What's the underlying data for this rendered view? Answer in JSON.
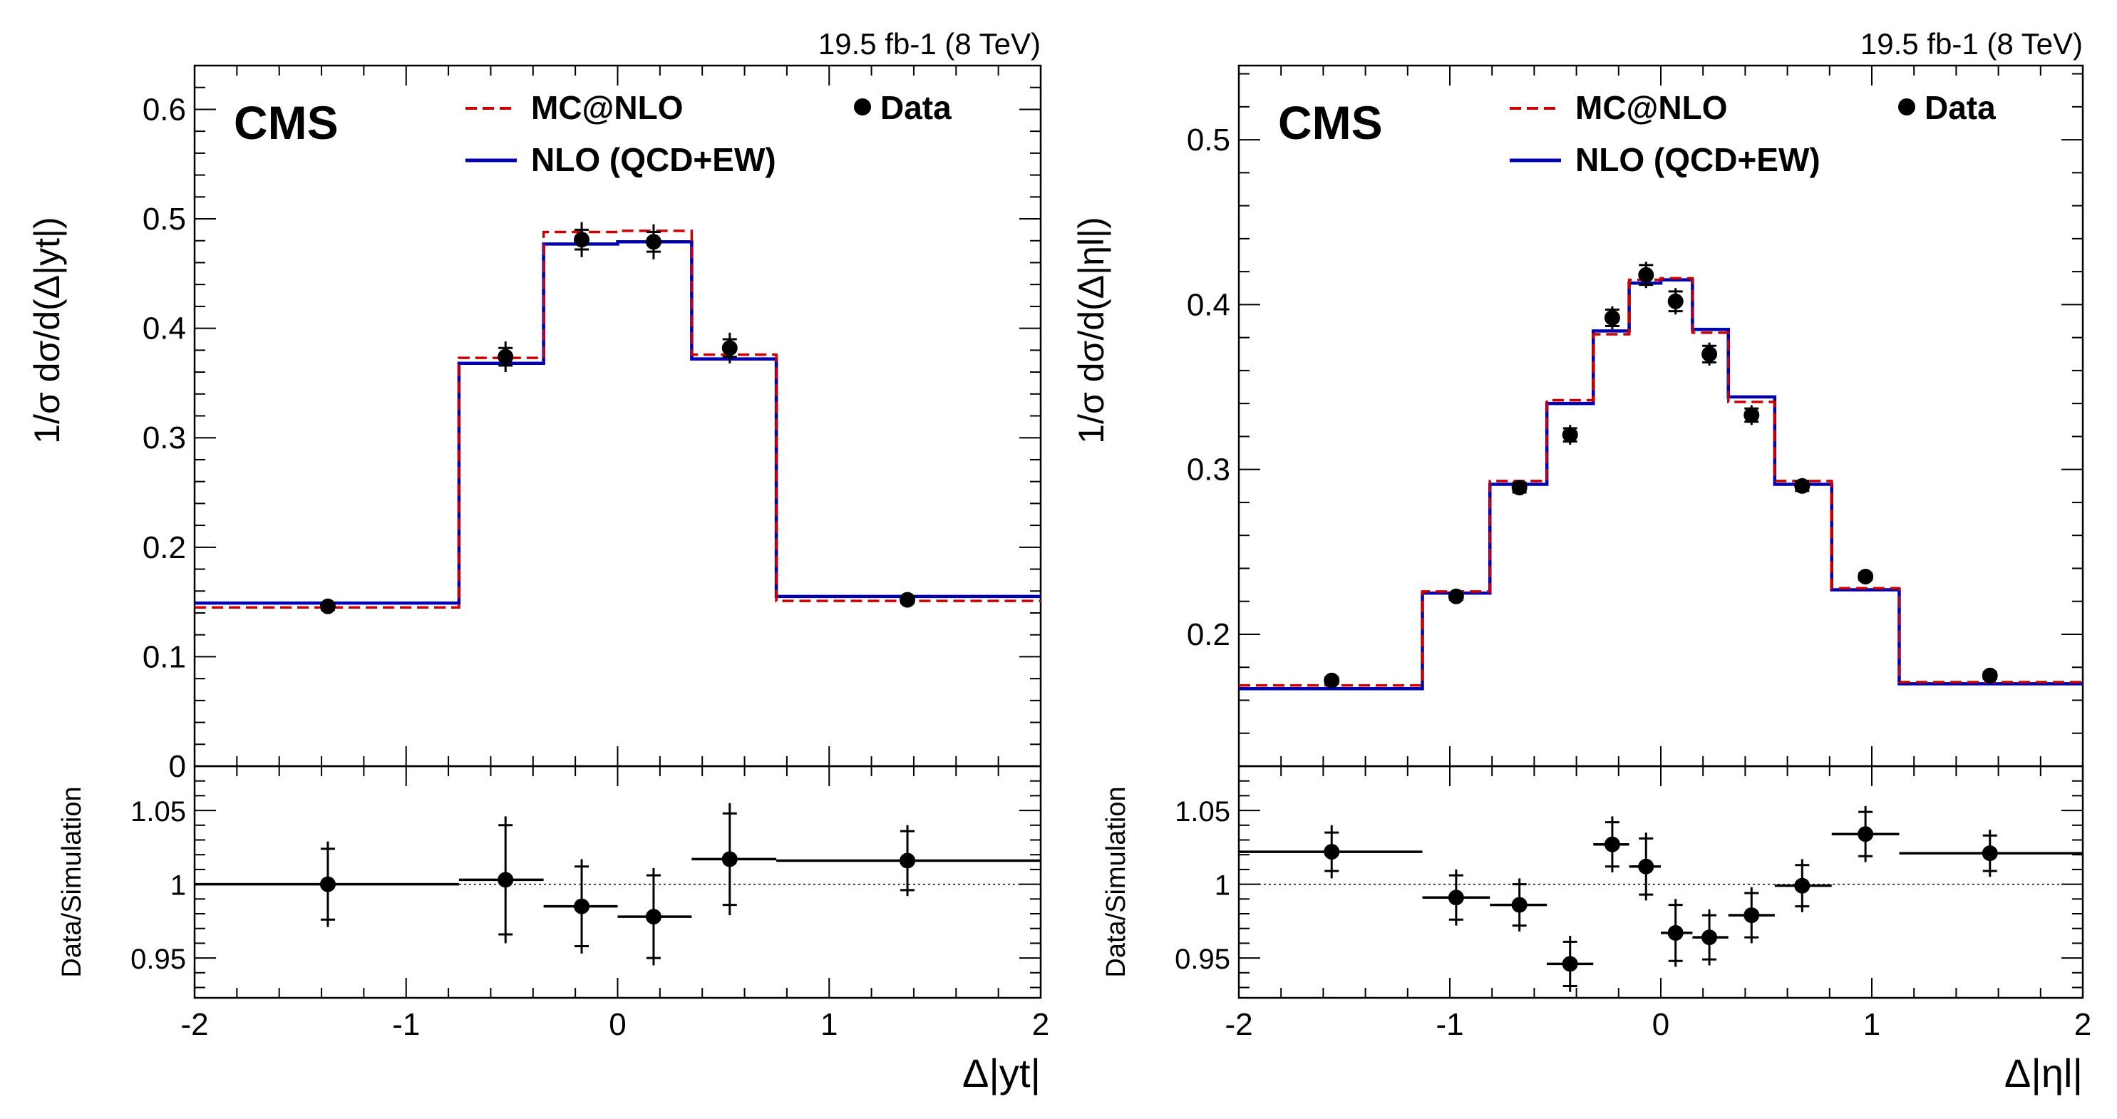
{
  "chart_data": [
    {
      "type": "line",
      "panel": "left",
      "lumi_label": "19.5 fb-1 (8 TeV)",
      "cms_label": "CMS",
      "xlabel": "Δ|yt|",
      "ylabel": "1/σ dσ/d(Δ|yt|)",
      "ratio_ylabel": "Data/Simulation",
      "xlim": [
        -2,
        2
      ],
      "ylim": [
        0,
        0.64
      ],
      "ratio_ylim": [
        0.923,
        1.08
      ],
      "x_ticks": [
        {
          "v": -2,
          "label": "-2"
        },
        {
          "v": -1,
          "label": "-1"
        },
        {
          "v": 0,
          "label": "0"
        },
        {
          "v": 1,
          "label": "1"
        },
        {
          "v": 2,
          "label": "2"
        }
      ],
      "y_ticks": [
        {
          "v": 0,
          "label": "0"
        },
        {
          "v": 0.1,
          "label": "0.1"
        },
        {
          "v": 0.2,
          "label": "0.2"
        },
        {
          "v": 0.3,
          "label": "0.3"
        },
        {
          "v": 0.4,
          "label": "0.4"
        },
        {
          "v": 0.5,
          "label": "0.5"
        },
        {
          "v": 0.6,
          "label": "0.6"
        }
      ],
      "ratio_ticks": [
        {
          "v": 0.95,
          "label": "0.95"
        },
        {
          "v": 1.0,
          "label": "1"
        },
        {
          "v": 1.05,
          "label": "1.05"
        }
      ],
      "bin_edges": [
        -2,
        -0.75,
        -0.35,
        0,
        0.35,
        0.75,
        2
      ],
      "legend": {
        "mcatnlo": "MC@NLO",
        "nlo": "NLO (QCD+EW)",
        "data": "Data"
      },
      "series": [
        {
          "name": "MC@NLO",
          "color": "#cc0000",
          "dash": true,
          "values": [
            0.145,
            0.373,
            0.488,
            0.489,
            0.376,
            0.151
          ]
        },
        {
          "name": "NLO (QCD+EW)",
          "color": "#0000b0",
          "dash": false,
          "values": [
            0.149,
            0.368,
            0.477,
            0.479,
            0.372,
            0.155
          ]
        },
        {
          "name": "Data",
          "color": "#000000",
          "x": [
            -1.37,
            -0.53,
            -0.17,
            0.17,
            0.53,
            1.37
          ],
          "values": [
            0.146,
            0.374,
            0.481,
            0.479,
            0.382,
            0.152
          ],
          "err_inner": [
            0.003,
            0.008,
            0.009,
            0.009,
            0.008,
            0.003
          ],
          "err_outer": [
            0.004,
            0.014,
            0.016,
            0.016,
            0.014,
            0.004
          ]
        }
      ],
      "ratio": {
        "x": [
          -1.37,
          -0.53,
          -0.17,
          0.17,
          0.53,
          1.37
        ],
        "values": [
          1.0,
          1.003,
          0.985,
          0.978,
          1.017,
          1.016
        ],
        "err_inner": [
          0.024,
          0.037,
          0.027,
          0.028,
          0.031,
          0.02
        ],
        "err_outer": [
          0.029,
          0.043,
          0.032,
          0.033,
          0.038,
          0.024
        ]
      }
    },
    {
      "type": "line",
      "panel": "right",
      "lumi_label": "19.5 fb-1 (8 TeV)",
      "cms_label": "CMS",
      "xlabel": "Δ|ηl|",
      "ylabel": "1/σ dσ/d(Δ|ηl|)",
      "ratio_ylabel": "Data/Simulation",
      "xlim": [
        -2,
        2
      ],
      "ylim": [
        0.12,
        0.545
      ],
      "ratio_ylim": [
        0.923,
        1.08
      ],
      "x_ticks": [
        {
          "v": -2,
          "label": "-2"
        },
        {
          "v": -1,
          "label": "-1"
        },
        {
          "v": 0,
          "label": "0"
        },
        {
          "v": 1,
          "label": "1"
        },
        {
          "v": 2,
          "label": "2"
        }
      ],
      "y_ticks": [
        {
          "v": 0.2,
          "label": "0.2"
        },
        {
          "v": 0.3,
          "label": "0.3"
        },
        {
          "v": 0.4,
          "label": "0.4"
        },
        {
          "v": 0.5,
          "label": "0.5"
        }
      ],
      "ratio_ticks": [
        {
          "v": 0.95,
          "label": "0.95"
        },
        {
          "v": 1.0,
          "label": "1"
        },
        {
          "v": 1.05,
          "label": "1.05"
        }
      ],
      "bin_edges": [
        -2,
        -1.13,
        -0.81,
        -0.54,
        -0.32,
        -0.15,
        0,
        0.15,
        0.32,
        0.54,
        0.81,
        1.13,
        2
      ],
      "legend": {
        "mcatnlo": "MC@NLO",
        "nlo": "NLO (QCD+EW)",
        "data": "Data"
      },
      "series": [
        {
          "name": "MC@NLO",
          "color": "#cc0000",
          "dash": true,
          "values": [
            0.169,
            0.226,
            0.293,
            0.342,
            0.382,
            0.415,
            0.416,
            0.383,
            0.341,
            0.293,
            0.228,
            0.171
          ]
        },
        {
          "name": "NLO (QCD+EW)",
          "color": "#0000b0",
          "dash": false,
          "values": [
            0.167,
            0.225,
            0.291,
            0.34,
            0.384,
            0.413,
            0.415,
            0.385,
            0.344,
            0.291,
            0.227,
            0.17
          ]
        },
        {
          "name": "Data",
          "color": "#000000",
          "x": [
            -1.56,
            -0.97,
            -0.67,
            -0.43,
            -0.23,
            -0.07,
            0.07,
            0.23,
            0.43,
            0.67,
            0.97,
            1.56
          ],
          "values": [
            0.172,
            0.223,
            0.289,
            0.321,
            0.392,
            0.418,
            0.402,
            0.37,
            0.333,
            0.29,
            0.235,
            0.175
          ],
          "err_inner": [
            0.002,
            0.002,
            0.003,
            0.004,
            0.005,
            0.006,
            0.006,
            0.005,
            0.004,
            0.003,
            0.002,
            0.002
          ],
          "err_outer": [
            0.003,
            0.003,
            0.004,
            0.006,
            0.007,
            0.008,
            0.008,
            0.007,
            0.006,
            0.004,
            0.003,
            0.003
          ]
        }
      ],
      "ratio": {
        "x": [
          -1.56,
          -0.97,
          -0.67,
          -0.43,
          -0.23,
          -0.07,
          0.07,
          0.23,
          0.43,
          0.67,
          0.97,
          1.56
        ],
        "values": [
          1.022,
          0.991,
          0.986,
          0.946,
          1.027,
          1.012,
          0.967,
          0.964,
          0.979,
          0.999,
          1.034,
          1.021
        ],
        "err_inner": [
          0.013,
          0.015,
          0.014,
          0.015,
          0.015,
          0.019,
          0.019,
          0.015,
          0.015,
          0.014,
          0.015,
          0.012
        ],
        "err_outer": [
          0.018,
          0.019,
          0.018,
          0.019,
          0.019,
          0.023,
          0.023,
          0.019,
          0.019,
          0.018,
          0.019,
          0.016
        ]
      }
    }
  ]
}
